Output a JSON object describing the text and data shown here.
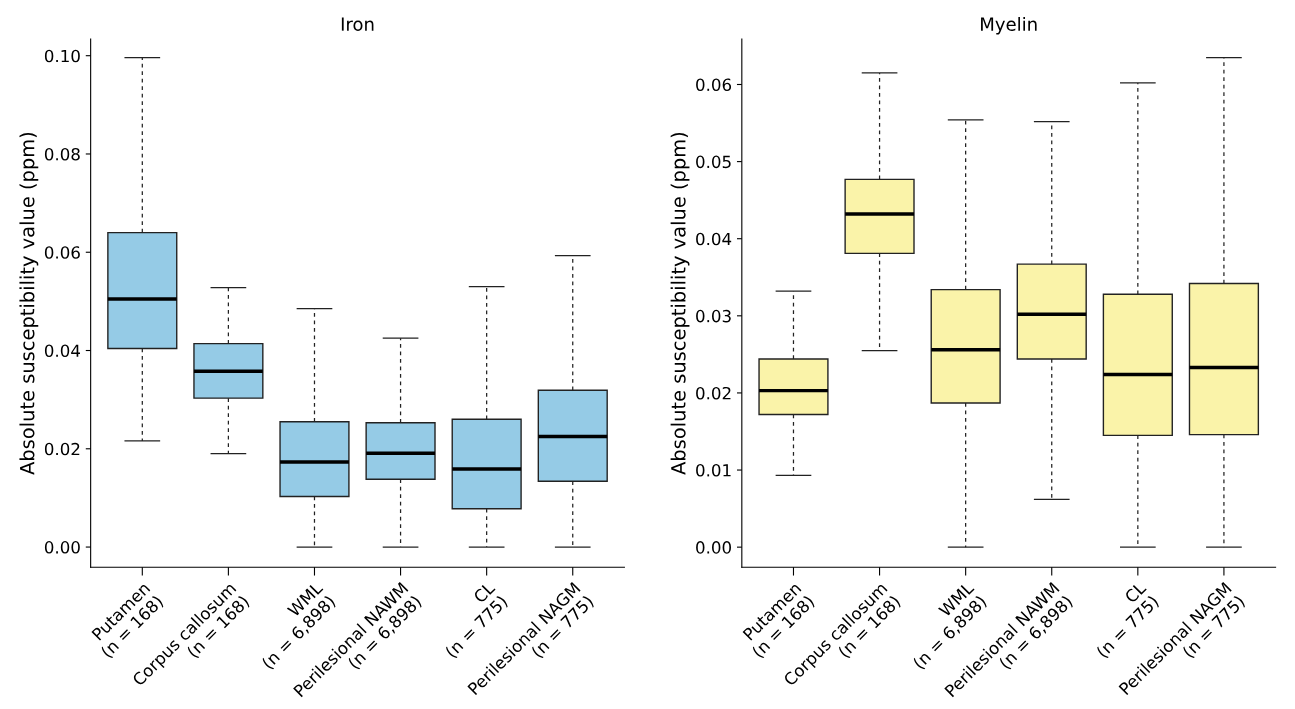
{
  "chart_data": [
    {
      "type": "box",
      "title": "Iron",
      "ylabel": "Absolute susceptibility value (ppm)",
      "categories": [
        "Putamen\n(n = 168)",
        "Corpus callosum\n(n = 168)",
        "WML\n(n = 6,898)",
        "Perilesional NAWM\n(n = 6,898)",
        "CL\n(n = 775)",
        "Perilesional NAGM\n(n = 775)"
      ],
      "color": "#95cbe6",
      "ylim": [
        -0.0041,
        0.1034
      ],
      "yticks": [
        {
          "value": 0,
          "label": "0.00"
        },
        {
          "value": 0.02,
          "label": "0.02"
        },
        {
          "value": 0.04,
          "label": "0.04"
        },
        {
          "value": 0.06,
          "label": "0.06"
        },
        {
          "value": 0.08,
          "label": "0.08"
        },
        {
          "value": 0.1,
          "label": "0.10"
        }
      ],
      "grid": false,
      "boxes": [
        {
          "low": 0.0216,
          "q1": 0.0404,
          "median": 0.0505,
          "q3": 0.064,
          "high": 0.0996
        },
        {
          "low": 0.019,
          "q1": 0.0303,
          "median": 0.0358,
          "q3": 0.0414,
          "high": 0.0528
        },
        {
          "low": 0.0,
          "q1": 0.0103,
          "median": 0.0173,
          "q3": 0.0255,
          "high": 0.0485
        },
        {
          "low": 0.0,
          "q1": 0.0138,
          "median": 0.0191,
          "q3": 0.0253,
          "high": 0.0425
        },
        {
          "low": 0.0,
          "q1": 0.0078,
          "median": 0.0159,
          "q3": 0.026,
          "high": 0.053
        },
        {
          "low": 0.0,
          "q1": 0.0134,
          "median": 0.0225,
          "q3": 0.0319,
          "high": 0.0593
        }
      ]
    },
    {
      "type": "box",
      "title": "Myelin",
      "ylabel": "Absolute susceptibility value (ppm)",
      "categories": [
        "Putamen\n(n = 168)",
        "Corpus callosum\n(n = 168)",
        "WML\n(n = 6,898)",
        "Perilesional NAWM\n(n = 6,898)",
        "CL\n(n = 775)",
        "Perilesional NAGM\n(n = 775)"
      ],
      "color": "#faf3a9",
      "ylim": [
        -0.0026,
        0.0659
      ],
      "yticks": [
        {
          "value": 0,
          "label": "0.00"
        },
        {
          "value": 0.01,
          "label": "0.01"
        },
        {
          "value": 0.02,
          "label": "0.02"
        },
        {
          "value": 0.03,
          "label": "0.03"
        },
        {
          "value": 0.04,
          "label": "0.04"
        },
        {
          "value": 0.05,
          "label": "0.05"
        },
        {
          "value": 0.06,
          "label": "0.06"
        }
      ],
      "grid": false,
      "boxes": [
        {
          "low": 0.0093,
          "q1": 0.0172,
          "median": 0.0203,
          "q3": 0.0244,
          "high": 0.0332
        },
        {
          "low": 0.0255,
          "q1": 0.0381,
          "median": 0.0432,
          "q3": 0.0477,
          "high": 0.0615
        },
        {
          "low": 0.0,
          "q1": 0.0187,
          "median": 0.0256,
          "q3": 0.0334,
          "high": 0.0554
        },
        {
          "low": 0.0062,
          "q1": 0.0244,
          "median": 0.0302,
          "q3": 0.0367,
          "high": 0.0552
        },
        {
          "low": 0.0,
          "q1": 0.0145,
          "median": 0.0224,
          "q3": 0.0328,
          "high": 0.0602
        },
        {
          "low": 0.0,
          "q1": 0.0146,
          "median": 0.0233,
          "q3": 0.0342,
          "high": 0.0635
        }
      ]
    }
  ]
}
